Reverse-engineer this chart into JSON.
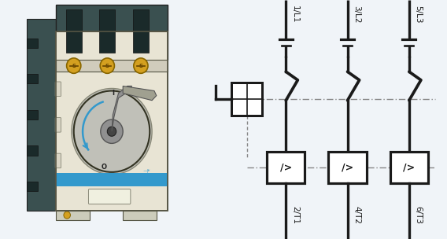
{
  "bg_color": "#f0f4f8",
  "line_color": "#1a1a1a",
  "top_labels": [
    "1/L1",
    "3/L2",
    "5/L3"
  ],
  "bottom_labels": [
    "2/T1",
    "4/T2",
    "6/T3"
  ],
  "symbol_text": "/>",
  "cols": [
    0.38,
    0.58,
    0.78
  ],
  "breaker_body_color": "#e8e4d4",
  "breaker_dark_color": "#3a5050",
  "breaker_mid_color": "#b0b8b0",
  "breaker_blue": "#3399cc",
  "screw_color": "#d4a020",
  "handle_color": "#909090"
}
